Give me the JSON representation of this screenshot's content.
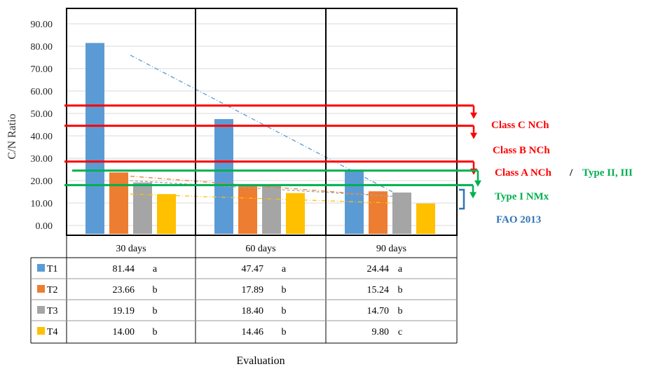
{
  "chart_data": {
    "type": "bar",
    "ylabel": "C/N Ratio",
    "xlabel": "Evaluation",
    "ylim": [
      0,
      100
    ],
    "yticks": [
      "0.00",
      "10.00",
      "20.00",
      "30.00",
      "40.00",
      "50.00",
      "60.00",
      "70.00",
      "80.00",
      "90.00"
    ],
    "categories": [
      "30 days",
      "60 days",
      "90 days"
    ],
    "series": [
      {
        "name": "T1",
        "color": "#5b9bd5",
        "values": [
          81.44,
          47.47,
          24.44
        ],
        "labels": [
          "81.44",
          "47.47",
          "24.44"
        ],
        "groups": [
          "a",
          "a",
          "a"
        ]
      },
      {
        "name": "T2",
        "color": "#ed7d31",
        "values": [
          23.66,
          17.89,
          15.24
        ],
        "labels": [
          "23.66",
          "17.89",
          "15.24"
        ],
        "groups": [
          "b",
          "b",
          "b"
        ]
      },
      {
        "name": "T3",
        "color": "#a5a5a5",
        "values": [
          19.19,
          18.4,
          14.7
        ],
        "labels": [
          "19.19",
          "18.40",
          "14.70"
        ],
        "groups": [
          "b",
          "b",
          "b"
        ]
      },
      {
        "name": "T4",
        "color": "#ffc000",
        "values": [
          14.0,
          14.46,
          9.8
        ],
        "labels": [
          "14.00",
          "14.46",
          "9.80"
        ],
        "groups": [
          "b",
          "b",
          "c"
        ]
      }
    ],
    "trendlines": [
      {
        "series": "T1",
        "color": "#5b9bd5",
        "from": 76,
        "to": 15
      },
      {
        "series": "T2",
        "color": "#ed7d31",
        "from": 22,
        "to": 13
      },
      {
        "series": "T3",
        "color": "#a5a5a5",
        "from": 20,
        "to": 13
      },
      {
        "series": "T4",
        "color": "#ffc000",
        "from": 14,
        "to": 10
      }
    ],
    "reference_lines": [
      {
        "value": 53.5,
        "color": "#ff0000"
      },
      {
        "value": 44.5,
        "color": "#ff0000"
      },
      {
        "value": 28.5,
        "color": "#ff0000"
      },
      {
        "value": 24.5,
        "color": "#00b050"
      },
      {
        "value": 18,
        "color": "#00b050"
      }
    ],
    "annotations": [
      {
        "text": "Class C NCh",
        "color": "#ff0000"
      },
      {
        "text": "Class B NCh",
        "color": "#ff0000"
      },
      {
        "text": "Class A NCh",
        "color": "#ff0000"
      },
      {
        "text": "/",
        "color": "#000000"
      },
      {
        "text": "Type II, III",
        "color": "#00b050"
      },
      {
        "text": "Type I NMx",
        "color": "#00b050"
      },
      {
        "text": "FAO 2013",
        "color": "#2e75b6"
      }
    ],
    "grid": true
  }
}
